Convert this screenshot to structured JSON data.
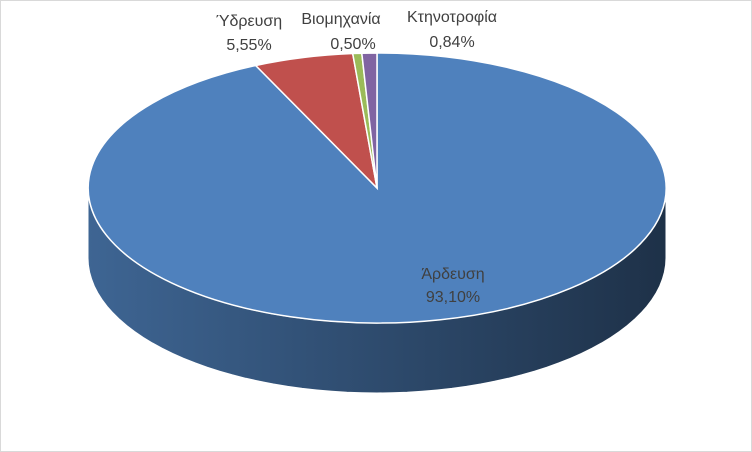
{
  "chart_data": {
    "type": "pie3d",
    "categories": [
      "Άρδευση",
      "Ύδρευση",
      "Βιομηχανία",
      "Κτηνοτροφία"
    ],
    "values": [
      93.1,
      5.55,
      0.5,
      0.84
    ],
    "value_labels": [
      "93,10%",
      "5,55%",
      "0,50%",
      "0,84%"
    ],
    "colors": [
      "#4f81bd",
      "#c0504d",
      "#9bbb59",
      "#8064a2"
    ]
  }
}
